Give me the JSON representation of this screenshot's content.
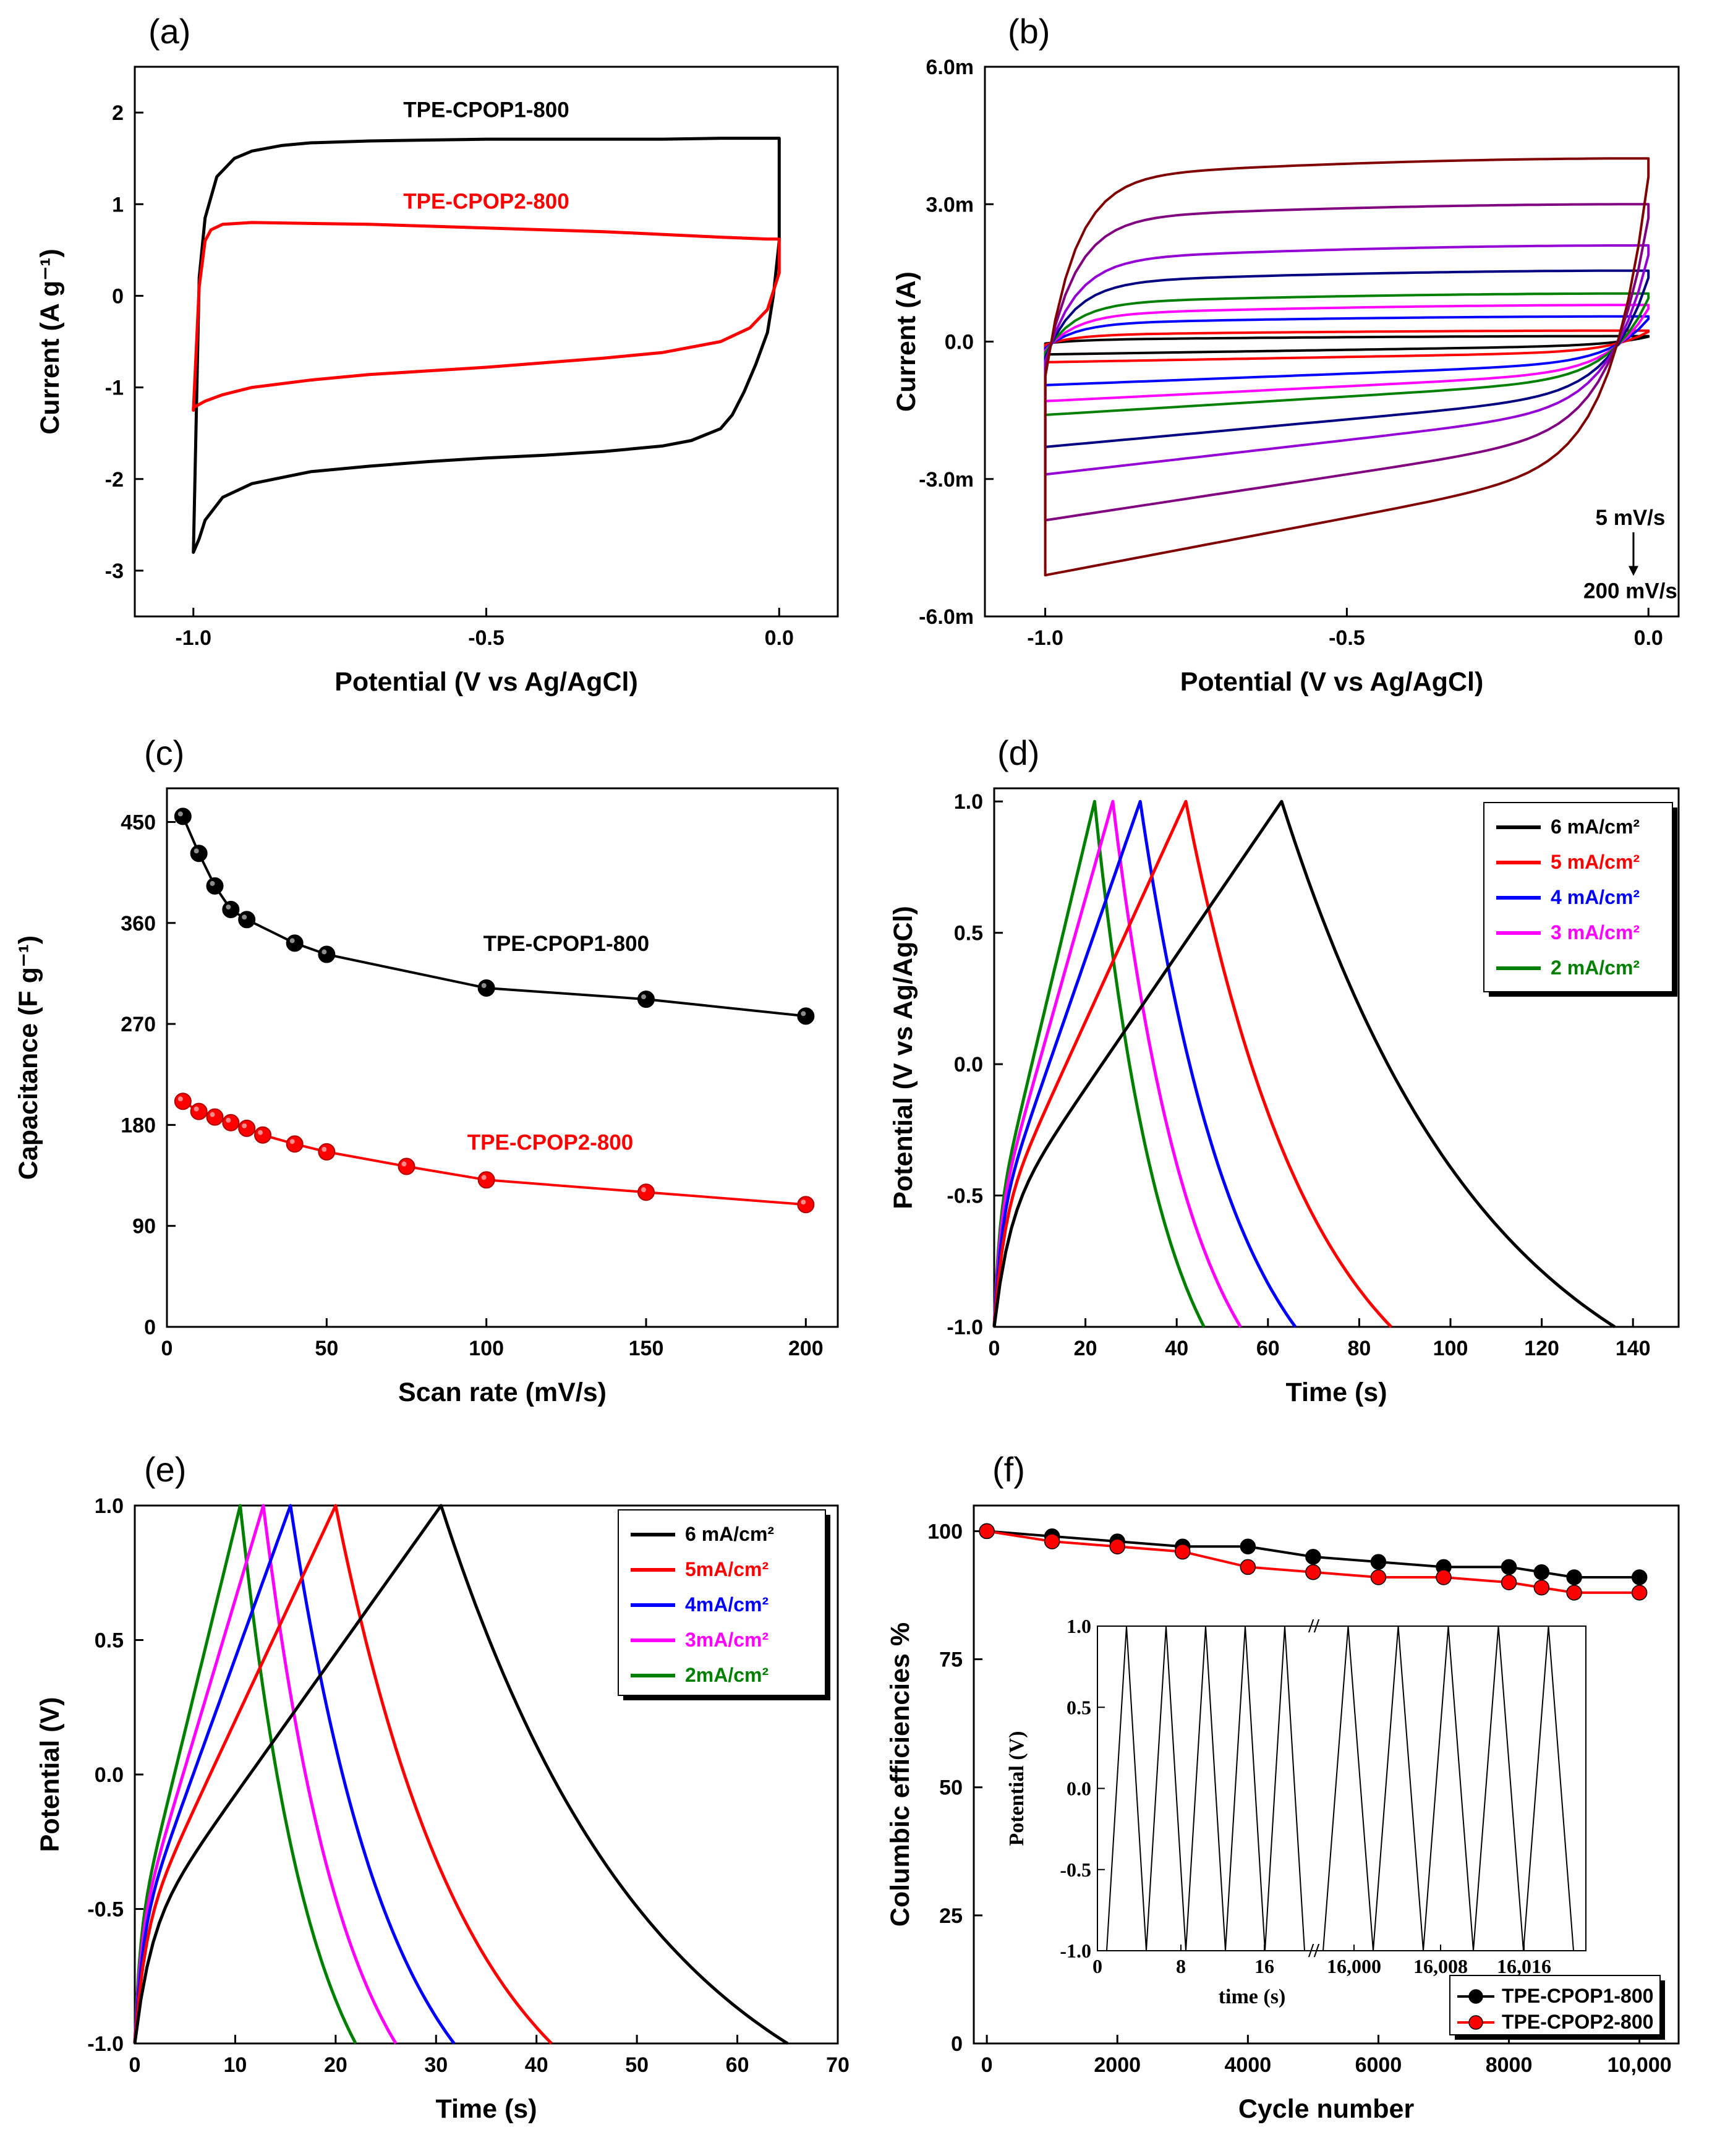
{
  "chart_data": [
    {
      "panel": "(a)",
      "type": "line",
      "xlabel": "Potential (V vs Ag/AgCl)",
      "ylabel": "Current (A g⁻¹)",
      "xlim": [
        -1.1,
        0.1
      ],
      "ylim": [
        -3.5,
        2.5
      ],
      "xticks": [
        -1.0,
        -0.5,
        0.0
      ],
      "xtick_labels": [
        "-1.0",
        "-0.5",
        "0.0"
      ],
      "yticks": [
        -3,
        -2,
        -1,
        0,
        1,
        2
      ],
      "ytick_labels": [
        "-3",
        "-2",
        "-1",
        "0",
        "1",
        "2"
      ],
      "series": [
        {
          "name": "TPE-CPOP1-800",
          "color": "#000000",
          "x": [
            -1.0,
            -0.99,
            -0.98,
            -0.96,
            -0.93,
            -0.9,
            -0.85,
            -0.8,
            -0.7,
            -0.6,
            -0.5,
            -0.4,
            -0.3,
            -0.2,
            -0.1,
            -0.02,
            0.0,
            0.0,
            -0.01,
            -0.02,
            -0.04,
            -0.06,
            -0.08,
            -0.1,
            -0.15,
            -0.2,
            -0.3,
            -0.4,
            -0.5,
            -0.6,
            -0.7,
            -0.8,
            -0.9,
            -0.95,
            -0.98,
            -0.99,
            -1.0,
            -1.0
          ],
          "y": [
            -2.8,
            0.2,
            0.85,
            1.3,
            1.5,
            1.58,
            1.64,
            1.67,
            1.69,
            1.7,
            1.71,
            1.71,
            1.71,
            1.71,
            1.72,
            1.72,
            1.72,
            0.6,
            0.0,
            -0.4,
            -0.75,
            -1.05,
            -1.3,
            -1.45,
            -1.58,
            -1.64,
            -1.7,
            -1.74,
            -1.77,
            -1.81,
            -1.86,
            -1.92,
            -2.05,
            -2.2,
            -2.45,
            -2.65,
            -2.8,
            -2.8
          ]
        },
        {
          "name": "TPE-CPOP2-800",
          "color": "#ff0000",
          "x": [
            -1.0,
            -0.99,
            -0.98,
            -0.97,
            -0.95,
            -0.9,
            -0.8,
            -0.7,
            -0.6,
            -0.5,
            -0.4,
            -0.3,
            -0.2,
            -0.1,
            -0.02,
            0.0,
            0.0,
            -0.02,
            -0.05,
            -0.1,
            -0.2,
            -0.3,
            -0.4,
            -0.5,
            -0.6,
            -0.7,
            -0.8,
            -0.9,
            -0.95,
            -0.98,
            -1.0,
            -1.0
          ],
          "y": [
            -1.25,
            0.1,
            0.6,
            0.72,
            0.78,
            0.8,
            0.79,
            0.78,
            0.76,
            0.74,
            0.72,
            0.7,
            0.67,
            0.64,
            0.62,
            0.62,
            0.25,
            -0.15,
            -0.35,
            -0.5,
            -0.62,
            -0.68,
            -0.73,
            -0.78,
            -0.82,
            -0.86,
            -0.92,
            -1.0,
            -1.08,
            -1.15,
            -1.22,
            -1.25
          ]
        }
      ],
      "annotations": [
        {
          "text": "TPE-CPOP1-800",
          "color": "#000000",
          "x": -0.5,
          "y": 1.95
        },
        {
          "text": "TPE-CPOP2-800",
          "color": "#ff0000",
          "x": -0.5,
          "y": 0.95
        }
      ]
    },
    {
      "panel": "(b)",
      "type": "line",
      "xlabel": "Potential (V vs Ag/AgCl)",
      "ylabel": "Current (A)",
      "xlim": [
        -1.1,
        0.05
      ],
      "ylim": [
        -0.006,
        0.006
      ],
      "xticks": [
        -1.0,
        -0.5,
        0.0
      ],
      "xtick_labels": [
        "-1.0",
        "-0.5",
        "0.0"
      ],
      "yticks": [
        -0.006,
        -0.003,
        0.0,
        0.003,
        0.006
      ],
      "ytick_labels": [
        "-6.0m",
        "-3.0m",
        "0.0",
        "3.0m",
        "6.0m"
      ],
      "loops": [
        {
          "color": "#000000",
          "top_left": 4e-05,
          "top_right": 0.00012,
          "bottom_left": -0.00028,
          "bottom_right": -8e-05
        },
        {
          "color": "#ff0000",
          "top_left": 0.00015,
          "top_right": 0.00024,
          "bottom_left": -0.00045,
          "bottom_right": -0.00022
        },
        {
          "color": "#0000ff",
          "top_left": 0.0004,
          "top_right": 0.00055,
          "bottom_left": -0.00095,
          "bottom_right": -0.00045
        },
        {
          "color": "#ff00ff",
          "top_left": 0.0006,
          "top_right": 0.0008,
          "bottom_left": -0.0013,
          "bottom_right": -0.00065
        },
        {
          "color": "#008000",
          "top_left": 0.00085,
          "top_right": 0.00105,
          "bottom_left": -0.0016,
          "bottom_right": -0.0008
        },
        {
          "color": "#000080",
          "top_left": 0.0013,
          "top_right": 0.00155,
          "bottom_left": -0.0023,
          "bottom_right": -0.0011
        },
        {
          "color": "#9400d3",
          "top_left": 0.0018,
          "top_right": 0.0021,
          "bottom_left": -0.0029,
          "bottom_right": -0.0014
        },
        {
          "color": "#800080",
          "top_left": 0.0027,
          "top_right": 0.003,
          "bottom_left": -0.0039,
          "bottom_right": -0.0019
        },
        {
          "color": "#800000",
          "top_left": 0.0036,
          "top_right": 0.004,
          "bottom_left": -0.0051,
          "bottom_right": -0.0026
        }
      ],
      "annotations": [
        {
          "text": "5 mV/s",
          "x": -0.03,
          "y": -0.004
        },
        {
          "text": "200 mV/s",
          "x": -0.03,
          "y": -0.0056
        }
      ]
    },
    {
      "panel": "(c)",
      "type": "line",
      "xlabel": "Scan rate (mV/s)",
      "ylabel": "Capacitance (F g⁻¹)",
      "xlim": [
        0,
        210
      ],
      "ylim": [
        0,
        480
      ],
      "xticks": [
        0,
        50,
        100,
        150,
        200
      ],
      "xtick_labels": [
        "0",
        "50",
        "100",
        "150",
        "200"
      ],
      "yticks": [
        0,
        90,
        180,
        270,
        360,
        450
      ],
      "ytick_labels": [
        "0",
        "90",
        "180",
        "270",
        "360",
        "450"
      ],
      "series": [
        {
          "name": "TPE-CPOP1-800",
          "color": "#000000",
          "x": [
            5,
            10,
            15,
            20,
            25,
            40,
            50,
            100,
            150,
            200
          ],
          "y": [
            455,
            422,
            393,
            372,
            363,
            342,
            332,
            302,
            292,
            277
          ]
        },
        {
          "name": "TPE-CPOP2-800",
          "color": "#ff0000",
          "x": [
            5,
            10,
            15,
            20,
            25,
            30,
            40,
            50,
            75,
            100,
            150,
            200
          ],
          "y": [
            201,
            192,
            187,
            182,
            177,
            171,
            163,
            156,
            143,
            131,
            120,
            109
          ]
        }
      ],
      "annotations": [
        {
          "text": "TPE-CPOP1-800",
          "color": "#000000",
          "x": 125,
          "y": 335
        },
        {
          "text": "TPE-CPOP2-800",
          "color": "#ff0000",
          "x": 120,
          "y": 158
        }
      ]
    },
    {
      "panel": "(d)",
      "type": "line",
      "xlabel": "Time (s)",
      "ylabel": "Potential (V vs Ag/AgCl)",
      "xlim": [
        0,
        150
      ],
      "ylim": [
        -1.0,
        1.05
      ],
      "xticks": [
        0,
        20,
        40,
        60,
        80,
        100,
        120,
        140
      ],
      "xtick_labels": [
        "0",
        "20",
        "40",
        "60",
        "80",
        "100",
        "120",
        "140"
      ],
      "yticks": [
        -1.0,
        -0.5,
        0.0,
        0.5,
        1.0
      ],
      "ytick_labels": [
        "-1.0",
        "-0.5",
        "0.0",
        "0.5",
        "1.0"
      ],
      "series": [
        {
          "name": "6 mA/cm²",
          "color": "#000000",
          "t_peak": 63,
          "t_end": 136
        },
        {
          "name": "5 mA/cm²",
          "color": "#ff0000",
          "t_peak": 42,
          "t_end": 87
        },
        {
          "name": "4 mA/cm²",
          "color": "#0000ff",
          "t_peak": 32,
          "t_end": 66
        },
        {
          "name": "3 mA/cm²",
          "color": "#ff00ff",
          "t_peak": 26,
          "t_end": 54
        },
        {
          "name": "2 mA/cm²",
          "color": "#008000",
          "t_peak": 22,
          "t_end": 46
        }
      ],
      "legend_position": "top-right"
    },
    {
      "panel": "(e)",
      "type": "line",
      "xlabel": "Time (s)",
      "ylabel": "Potential (V)",
      "xlim": [
        0,
        70
      ],
      "ylim": [
        -1.0,
        1.0
      ],
      "xticks": [
        0,
        10,
        20,
        30,
        40,
        50,
        60,
        70
      ],
      "xtick_labels": [
        "0",
        "10",
        "20",
        "30",
        "40",
        "50",
        "60",
        "70"
      ],
      "yticks": [
        -1.0,
        -0.5,
        0.0,
        0.5,
        1.0
      ],
      "ytick_labels": [
        "-1.0",
        "-0.5",
        "0.0",
        "0.5",
        "1.0"
      ],
      "series": [
        {
          "name": "6 mA/cm²",
          "color": "#000000",
          "t_peak": 30.5,
          "t_end": 65
        },
        {
          "name": "5mA/cm²",
          "color": "#ff0000",
          "t_peak": 20,
          "t_end": 41.5
        },
        {
          "name": "4mA/cm²",
          "color": "#0000ff",
          "t_peak": 15.5,
          "t_end": 31.8
        },
        {
          "name": "3mA/cm²",
          "color": "#ff00ff",
          "t_peak": 12.8,
          "t_end": 26
        },
        {
          "name": "2mA/cm²",
          "color": "#008000",
          "t_peak": 10.5,
          "t_end": 22
        }
      ],
      "legend_position": "top-right"
    },
    {
      "panel": "(f)",
      "type": "line",
      "xlabel": "Cycle number",
      "ylabel": "Columbic efficiencies %",
      "xlim": [
        -200,
        10600
      ],
      "ylim": [
        0,
        105
      ],
      "xticks": [
        0,
        2000,
        4000,
        6000,
        8000,
        10000
      ],
      "xtick_labels": [
        "0",
        "2000",
        "4000",
        "6000",
        "8000",
        "10,000"
      ],
      "yticks": [
        0,
        25,
        50,
        75,
        100
      ],
      "ytick_labels": [
        "0",
        "25",
        "50",
        "75",
        "100"
      ],
      "series": [
        {
          "name": "TPE-CPOP1-800",
          "color": "#000000",
          "x": [
            0,
            1000,
            2000,
            3000,
            4000,
            5000,
            6000,
            7000,
            8000,
            8500,
            9000,
            10000
          ],
          "y": [
            100,
            99,
            98,
            97,
            97,
            95,
            94,
            93,
            93,
            92,
            91,
            91
          ]
        },
        {
          "name": "TPE-CPOP2-800",
          "color": "#ff0000",
          "x": [
            0,
            1000,
            2000,
            3000,
            4000,
            5000,
            6000,
            7000,
            8000,
            8500,
            9000,
            10000
          ],
          "y": [
            100,
            98,
            97,
            96,
            93,
            92,
            91,
            91,
            90,
            89,
            88,
            88
          ]
        }
      ],
      "legend_position": "bottom-right",
      "inset": {
        "xlabel": "time (s)",
        "ylabel": "Potential (V)",
        "ylim": [
          -1.0,
          1.0
        ],
        "yticks": [
          -1.0,
          -0.5,
          0.0,
          0.5,
          1.0
        ],
        "ytick_labels": [
          "-1.0",
          "-0.5",
          "0.0",
          "0.5",
          "1.0"
        ],
        "xtick_labels": [
          "0",
          "8",
          "16",
          "16,000",
          "16,008",
          "16,016"
        ],
        "n_peaks": 10,
        "break_mark": "//"
      }
    }
  ],
  "panel_letters": [
    "(a)",
    "(b)",
    "(c)",
    "(d)",
    "(e)",
    "(f)"
  ]
}
